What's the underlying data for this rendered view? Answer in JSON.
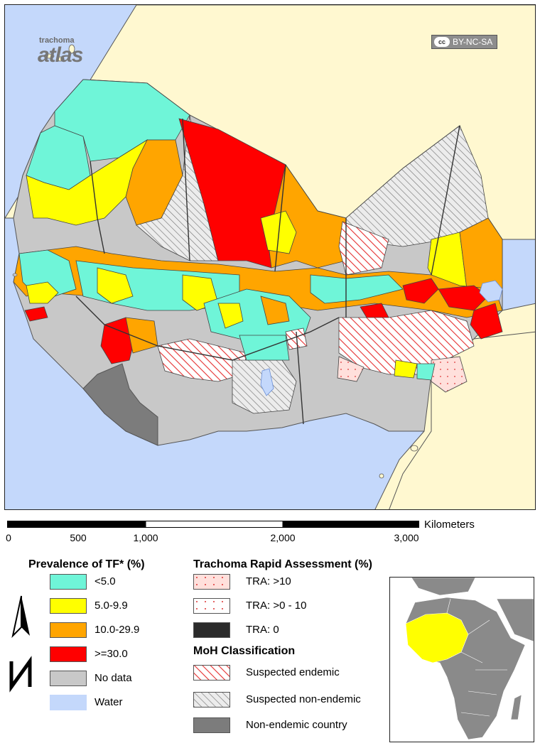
{
  "map": {
    "logo_small": "trachoma",
    "logo_large": "atlas",
    "license_icon": "cc",
    "license_text": "BY-NC-SA",
    "colors": {
      "water": "#c4d8fb",
      "non_study_land": "#fff8d0",
      "lt5": "#6ff5d8",
      "p5_9": "#ffff00",
      "p10_29": "#ffa500",
      "gte30": "#ff0000",
      "no_data": "#c8c8c8",
      "non_endemic": "#7c7c7c",
      "tra_gt10": "#ffe0dc"
    }
  },
  "scale": {
    "unit": "Kilometers",
    "ticks": [
      "0",
      "500",
      "1,000",
      "2,000",
      "3,000"
    ]
  },
  "legend": {
    "tf": {
      "title": "Prevalence of TF* (%)",
      "items": [
        {
          "label": "<5.0",
          "color": "#6ff5d8"
        },
        {
          "label": "5.0-9.9",
          "color": "#ffff00"
        },
        {
          "label": "10.0-29.9",
          "color": "#ffa500"
        },
        {
          "label": ">=30.0",
          "color": "#ff0000"
        },
        {
          "label": "No data",
          "color": "#c8c8c8"
        },
        {
          "label": "Water",
          "color": "#c4d8fb"
        }
      ]
    },
    "tra": {
      "title": "Trachoma Rapid Assessment (%)",
      "items": [
        {
          "label": "TRA: >10"
        },
        {
          "label": "TRA: >0 - 10"
        },
        {
          "label": "TRA: 0"
        }
      ]
    },
    "moh": {
      "title": "MoH Classification",
      "items": [
        {
          "label": "Suspected endemic"
        },
        {
          "label": "Suspected non-endemic"
        },
        {
          "label": "Non-endemic country"
        }
      ]
    }
  },
  "inset": {
    "highlight_color": "#ffff00",
    "land_color": "#8a8a8a"
  }
}
